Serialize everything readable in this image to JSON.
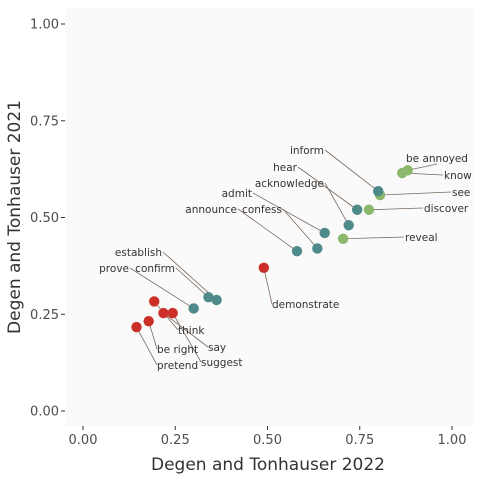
{
  "chart_data": {
    "type": "scatter",
    "xlabel": "Degen and Tonhauser 2022",
    "ylabel": "Degen and Tonhauser 2021",
    "xlim": [
      0,
      1
    ],
    "ylim": [
      0,
      1
    ],
    "x_ticks": [
      "0.00",
      "0.25",
      "0.50",
      "0.75",
      "1.00"
    ],
    "y_ticks": [
      "0.00",
      "0.25",
      "0.50",
      "0.75",
      "1.00"
    ],
    "grid": false,
    "legend": "none",
    "colors": {
      "red": "#cc2f27",
      "teal": "#4f8a8b",
      "green": "#8ab86c",
      "background": "#fafafa"
    },
    "points": [
      {
        "label": "be annoyed",
        "x": 0.88,
        "y": 0.622,
        "color": "green"
      },
      {
        "label": "know",
        "x": 0.865,
        "y": 0.615,
        "color": "green"
      },
      {
        "label": "see",
        "x": 0.805,
        "y": 0.558,
        "color": "green"
      },
      {
        "label": "discover",
        "x": 0.775,
        "y": 0.52,
        "color": "green"
      },
      {
        "label": "reveal",
        "x": 0.705,
        "y": 0.445,
        "color": "green"
      },
      {
        "label": "inform",
        "x": 0.8,
        "y": 0.568,
        "color": "teal"
      },
      {
        "label": "hear",
        "x": 0.743,
        "y": 0.52,
        "color": "teal"
      },
      {
        "label": "acknowledge",
        "x": 0.72,
        "y": 0.48,
        "color": "teal"
      },
      {
        "label": "admit",
        "x": 0.655,
        "y": 0.46,
        "color": "teal"
      },
      {
        "label": "confess",
        "x": 0.635,
        "y": 0.42,
        "color": "teal"
      },
      {
        "label": "announce",
        "x": 0.58,
        "y": 0.413,
        "color": "teal"
      },
      {
        "label": "establish",
        "x": 0.362,
        "y": 0.287,
        "color": "teal"
      },
      {
        "label": "confirm",
        "x": 0.34,
        "y": 0.294,
        "color": "teal"
      },
      {
        "label": "prove",
        "x": 0.3,
        "y": 0.265,
        "color": "teal"
      },
      {
        "label": "demonstrate",
        "x": 0.49,
        "y": 0.37,
        "color": "red"
      },
      {
        "label": "think",
        "x": 0.193,
        "y": 0.283,
        "color": "red"
      },
      {
        "label": "say",
        "x": 0.218,
        "y": 0.253,
        "color": "red"
      },
      {
        "label": "suggest",
        "x": 0.243,
        "y": 0.253,
        "color": "red"
      },
      {
        "label": "be right",
        "x": 0.178,
        "y": 0.232,
        "color": "red"
      },
      {
        "label": "pretend",
        "x": 0.145,
        "y": 0.217,
        "color": "red"
      }
    ]
  }
}
